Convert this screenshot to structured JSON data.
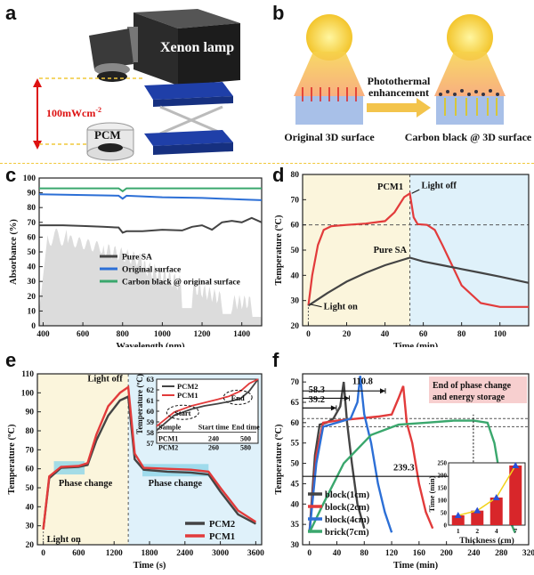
{
  "panel_a": {
    "label": "a",
    "lamp_label": "Xenon lamp",
    "intensity": "100mWcm",
    "intensity_sup": "-2",
    "sample_label": "PCM"
  },
  "panel_b": {
    "label": "b",
    "arrow_label_line1": "Photothermal",
    "arrow_label_line2": "enhancement",
    "left_caption": "Original 3D surface",
    "right_caption": "Carbon black @ 3D surface"
  },
  "colors": {
    "red": "#e23b3b",
    "black": "#444444",
    "blue": "#2c6fd6",
    "green": "#3aa76d",
    "yellow_bg": "#fbf5dc",
    "blue_bg": "#dff1fa",
    "gray_fill": "#dcdcdc"
  },
  "chart_data": [
    {
      "id": "c",
      "label": "c",
      "type": "line",
      "xlabel": "Wavelength (nm)",
      "ylabel": "Absorbance (%)",
      "xlim": [
        380,
        1500
      ],
      "ylim": [
        0,
        100
      ],
      "xticks": [
        "400",
        "600",
        "800",
        "1000",
        "1200",
        "1400"
      ],
      "yticks": [
        "0",
        "10",
        "20",
        "30",
        "40",
        "50",
        "60",
        "70",
        "80",
        "90",
        "100"
      ],
      "series": [
        {
          "name": "Pure SA",
          "color": "#444444",
          "x": [
            380,
            500,
            600,
            700,
            780,
            800,
            820,
            900,
            1000,
            1100,
            1150,
            1200,
            1250,
            1300,
            1350,
            1400,
            1450,
            1500
          ],
          "y": [
            68,
            68,
            67.5,
            67,
            66.5,
            63,
            64,
            64,
            65,
            64.5,
            67,
            68,
            65,
            70,
            71,
            70,
            73,
            70
          ]
        },
        {
          "name": "Original surface",
          "color": "#2c6fd6",
          "x": [
            380,
            600,
            780,
            800,
            820,
            1000,
            1200,
            1400,
            1500
          ],
          "y": [
            89,
            88.5,
            88,
            86,
            88,
            87,
            86.5,
            85.5,
            85
          ]
        },
        {
          "name": "Carbon black @ original surface",
          "color": "#3aa76d",
          "x": [
            380,
            600,
            780,
            800,
            820,
            1000,
            1200,
            1400,
            1500
          ],
          "y": [
            93,
            93,
            93,
            91,
            93,
            93,
            93,
            93,
            93
          ]
        }
      ],
      "legend": "bottom-right"
    },
    {
      "id": "d",
      "label": "d",
      "type": "line",
      "xlabel": "Time (min)",
      "ylabel": "Temperature (ºC)",
      "xlim": [
        -3,
        115
      ],
      "ylim": [
        20,
        80
      ],
      "xticks": [
        "0",
        "20",
        "40",
        "60",
        "80",
        "100"
      ],
      "yticks": [
        "20",
        "30",
        "40",
        "50",
        "60",
        "70",
        "80"
      ],
      "light_off_x": 53,
      "hline_y": 60,
      "series": [
        {
          "name": "PCM1",
          "color": "#e23b3b",
          "x": [
            0,
            2,
            5,
            8,
            12,
            20,
            30,
            40,
            45,
            50,
            53,
            55,
            57,
            62,
            66,
            70,
            75,
            80,
            90,
            100,
            115
          ],
          "y": [
            28,
            40,
            52,
            58,
            59.5,
            60,
            60.5,
            61.5,
            65,
            71,
            72.5,
            63,
            60.3,
            60,
            58,
            52,
            44,
            36,
            29,
            27.5,
            27.5
          ]
        },
        {
          "name": "Pure SA",
          "color": "#444444",
          "x": [
            0,
            10,
            20,
            30,
            40,
            53,
            60,
            70,
            80,
            90,
            100,
            115
          ],
          "y": [
            28,
            33,
            37.5,
            41,
            44,
            47,
            45.5,
            44,
            42.5,
            41,
            39.5,
            37
          ]
        }
      ],
      "annotations": [
        "PCM1",
        "Light off",
        "Pure SA",
        "Light on"
      ]
    },
    {
      "id": "e",
      "label": "e",
      "type": "line",
      "xlabel": "Time (s)",
      "ylabel": "Temperature (ºC)",
      "xlim": [
        -100,
        3700
      ],
      "ylim": [
        20,
        110
      ],
      "xticks": [
        "0",
        "600",
        "1200",
        "1800",
        "2400",
        "3000",
        "3600"
      ],
      "yticks": [
        "20",
        "30",
        "40",
        "50",
        "60",
        "70",
        "80",
        "90",
        "100",
        "110"
      ],
      "light_off_x": 1440,
      "series": [
        {
          "name": "PCM2",
          "color": "#444444",
          "x": [
            0,
            100,
            300,
            600,
            750,
            900,
            1100,
            1300,
            1440,
            1550,
            1700,
            2100,
            2500,
            2800,
            3000,
            3300,
            3600
          ],
          "y": [
            28,
            55,
            60.5,
            61,
            62,
            75,
            88,
            96,
            98,
            65,
            59.5,
            58.5,
            58,
            57,
            48,
            36,
            31
          ]
        },
        {
          "name": "PCM1",
          "color": "#e23b3b",
          "x": [
            0,
            100,
            300,
            600,
            750,
            900,
            1100,
            1300,
            1440,
            1550,
            1700,
            2100,
            2500,
            2800,
            3000,
            3300,
            3600
          ],
          "y": [
            28,
            56,
            61,
            61.5,
            63,
            78,
            93,
            100,
            103,
            68,
            60.5,
            60,
            59.5,
            58.5,
            50,
            38,
            32
          ]
        }
      ],
      "phase_change_label": "Phase change",
      "light_off_label": "Light off",
      "light_on_label": "Light on",
      "inset": {
        "ylabel": "Temperature (ºC)",
        "yticks": [
          "57",
          "58",
          "59",
          "60",
          "61",
          "62",
          "63"
        ],
        "legend": [
          "PCM2",
          "PCM1"
        ],
        "start_label": "Start",
        "end_label": "End",
        "table": {
          "headers": [
            "Sample",
            "Start time",
            "End time"
          ],
          "rows": [
            [
              "PCM1",
              "240",
              "500"
            ],
            [
              "PCM2",
              "260",
              "580"
            ]
          ]
        }
      }
    },
    {
      "id": "f",
      "label": "f",
      "type": "line",
      "xlabel": "Time (min)",
      "ylabel": "Temperature (ºC)",
      "xlim": [
        -10,
        320
      ],
      "ylim": [
        30,
        72
      ],
      "xticks": [
        "0",
        "40",
        "80",
        "120",
        "160",
        "200",
        "240",
        "280",
        "320"
      ],
      "yticks": [
        "30",
        "35",
        "40",
        "45",
        "50",
        "55",
        "60",
        "65",
        "70"
      ],
      "series": [
        {
          "name": "block(1cm)",
          "color": "#444444",
          "x": [
            0,
            8,
            15,
            25,
            35,
            45,
            50,
            55,
            62,
            70,
            80
          ],
          "y": [
            33,
            52,
            59.5,
            60,
            61,
            64,
            70,
            60,
            50,
            40,
            34
          ]
        },
        {
          "name": "block(2cm)",
          "color": "#e23b3b",
          "x": [
            0,
            10,
            20,
            40,
            70,
            100,
            120,
            130,
            137,
            142,
            150,
            160,
            170,
            180
          ],
          "y": [
            33,
            52,
            60,
            60.5,
            61,
            61.5,
            62,
            66,
            69,
            60,
            55,
            45,
            38,
            34
          ]
        },
        {
          "name": "block(4cm)",
          "color": "#2c6fd6",
          "x": [
            0,
            10,
            20,
            40,
            60,
            70,
            74,
            80,
            90,
            100,
            110,
            120
          ],
          "y": [
            33,
            50,
            59,
            60,
            61,
            65,
            71.5,
            62,
            55,
            45,
            38,
            33
          ]
        },
        {
          "name": "brick(7cm)",
          "color": "#3aa76d",
          "x": [
            0,
            20,
            50,
            90,
            130,
            170,
            210,
            240,
            260,
            270,
            280,
            290,
            300
          ],
          "y": [
            33,
            40,
            50,
            57,
            59.5,
            60,
            60.5,
            60.5,
            60,
            55,
            45,
            37,
            33
          ]
        }
      ],
      "time_labels": [
        "110.8",
        "58.3",
        "39.2",
        "239.3"
      ],
      "callout_line1": "End of phase change",
      "callout_line2": "and energy storage",
      "inset": {
        "type": "bar",
        "ylabel": "Time (min)",
        "xlabel": "Thickness (cm)",
        "categories": [
          "1",
          "2",
          "4",
          "7"
        ],
        "values": [
          39.2,
          58.3,
          110.8,
          239.3
        ],
        "yticks": [
          "0",
          "50",
          "100",
          "150",
          "200",
          "250"
        ]
      }
    }
  ]
}
